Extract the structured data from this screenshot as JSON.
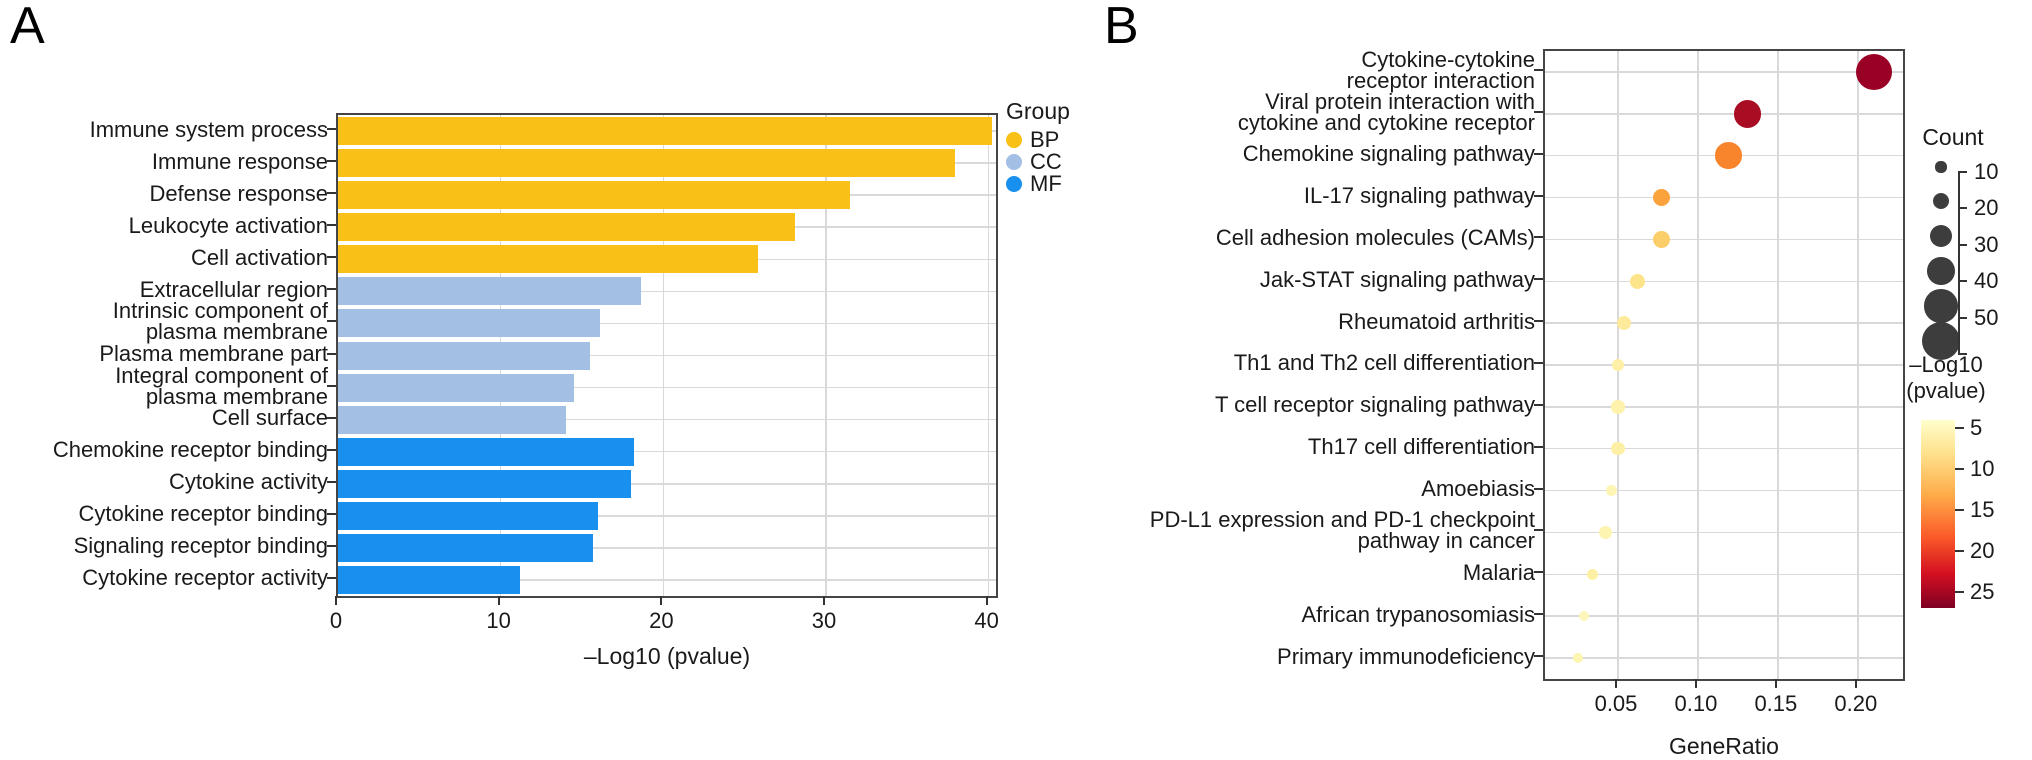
{
  "figure": {
    "panel_a_label": "A",
    "panel_b_label": "B"
  },
  "chart_data": [
    {
      "id": "go_enrichment_bar",
      "type": "bar",
      "orientation": "horizontal",
      "xlabel": "–Log10 (pvalue)",
      "xticks": [
        0,
        10,
        20,
        30,
        40
      ],
      "xlim": [
        0,
        40.5
      ],
      "grid": true,
      "legend": {
        "title": "Group",
        "position": "right",
        "items": [
          {
            "label": "BP",
            "color": "#F9C117"
          },
          {
            "label": "CC",
            "color": "#A3BFE4"
          },
          {
            "label": "MF",
            "color": "#1790F0"
          }
        ]
      },
      "categories": [
        "Immune system process",
        "Immune response",
        "Defense response",
        "Leukocyte activation",
        "Cell activation",
        "Extracellular region",
        "Intrinsic component of plasma membrane",
        "Plasma membrane part",
        "Integral component of plasma membrane",
        "Cell surface",
        "Chemokine receptor binding",
        "Cytokine activity",
        "Cytokine receptor binding",
        "Signaling receptor binding",
        "Cytokine receptor activity"
      ],
      "category_lines": [
        [
          "Immune system process"
        ],
        [
          "Immune response"
        ],
        [
          "Defense response"
        ],
        [
          "Leukocyte activation"
        ],
        [
          "Cell activation"
        ],
        [
          "Extracellular region"
        ],
        [
          "Intrinsic component of",
          "plasma membrane"
        ],
        [
          "Plasma membrane part"
        ],
        [
          "Integral component of",
          "plasma membrane"
        ],
        [
          "Cell surface"
        ],
        [
          "Chemokine receptor binding"
        ],
        [
          "Cytokine activity"
        ],
        [
          "Cytokine receptor binding"
        ],
        [
          "Signaling receptor binding"
        ],
        [
          "Cytokine receptor activity"
        ]
      ],
      "group_of": [
        "BP",
        "BP",
        "BP",
        "BP",
        "BP",
        "CC",
        "CC",
        "CC",
        "CC",
        "CC",
        "MF",
        "MF",
        "MF",
        "MF",
        "MF"
      ],
      "series": [
        {
          "name": "-Log10(pvalue)",
          "values": [
            40.2,
            37.9,
            31.5,
            28.1,
            25.8,
            18.6,
            16.1,
            15.5,
            14.5,
            14.0,
            18.2,
            18.0,
            16.0,
            15.7,
            11.2
          ]
        }
      ]
    },
    {
      "id": "kegg_dotplot",
      "type": "scatter",
      "xlabel": "GeneRatio",
      "xtick_labels": [
        "0.05",
        "0.10",
        "0.15",
        "0.20"
      ],
      "xtick_values": [
        0.05,
        0.1,
        0.15,
        0.2
      ],
      "xlim": [
        0.004,
        0.24
      ],
      "grid": true,
      "size_legend": {
        "title": "Count",
        "tick_labels": [
          "10",
          "20",
          "30",
          "40",
          "50"
        ],
        "bubble_counts": [
          10,
          20,
          30,
          40,
          50,
          60
        ]
      },
      "color_legend": {
        "title_lines": [
          "–Log10",
          "(pvalue)"
        ],
        "ticks": [
          "5",
          "10",
          "15",
          "20",
          "25"
        ],
        "scale_range": [
          5,
          25
        ],
        "gradient_top_to_bottom": [
          "#FFFFCC",
          "#FEE18B",
          "#FEAB49",
          "#FB5B29",
          "#D30F21",
          "#7E0023"
        ]
      },
      "points": [
        {
          "label": "Cytokine-cytokine receptor interaction",
          "label_lines": [
            "Cytokine-cytokine",
            "receptor interaction"
          ],
          "gene_ratio": 0.21,
          "count": 55,
          "neg_log10_pvalue": 25,
          "color": "#9A0026"
        },
        {
          "label": "Viral protein interaction with cytokine and cytokine receptor",
          "label_lines": [
            "Viral protein interaction with",
            "cytokine and cytokine receptor"
          ],
          "gene_ratio": 0.131,
          "count": 40,
          "neg_log10_pvalue": 23,
          "color": "#A80D23"
        },
        {
          "label": "Chemokine signaling pathway",
          "label_lines": [
            "Chemokine signaling pathway"
          ],
          "gene_ratio": 0.119,
          "count": 38,
          "neg_log10_pvalue": 14,
          "color": "#F8842C"
        },
        {
          "label": "IL-17 signaling pathway",
          "label_lines": [
            "IL-17 signaling pathway"
          ],
          "gene_ratio": 0.077,
          "count": 21,
          "neg_log10_pvalue": 12,
          "color": "#FAA23C"
        },
        {
          "label": "Cell adhesion molecules (CAMs)",
          "label_lines": [
            "Cell adhesion molecules (CAMs)"
          ],
          "gene_ratio": 0.077,
          "count": 21,
          "neg_log10_pvalue": 8.5,
          "color": "#FCCE69"
        },
        {
          "label": "Jak-STAT signaling pathway",
          "label_lines": [
            "Jak-STAT signaling pathway"
          ],
          "gene_ratio": 0.062,
          "count": 17,
          "neg_log10_pvalue": 7,
          "color": "#FDE48A"
        },
        {
          "label": "Rheumatoid arthritis",
          "label_lines": [
            "Rheumatoid arthritis"
          ],
          "gene_ratio": 0.054,
          "count": 15,
          "neg_log10_pvalue": 6,
          "color": "#FDEB9B"
        },
        {
          "label": "Th1 and Th2 cell differentiation",
          "label_lines": [
            "Th1 and Th2 cell differentiation"
          ],
          "gene_ratio": 0.05,
          "count": 13,
          "neg_log10_pvalue": 5,
          "color": "#FEF0A7"
        },
        {
          "label": "T cell receptor signaling pathway",
          "label_lines": [
            "T cell receptor signaling pathway"
          ],
          "gene_ratio": 0.05,
          "count": 14,
          "neg_log10_pvalue": 5,
          "color": "#FEF2AC"
        },
        {
          "label": "Th17 cell differentiation",
          "label_lines": [
            "Th17 cell differentiation"
          ],
          "gene_ratio": 0.05,
          "count": 14,
          "neg_log10_pvalue": 5,
          "color": "#FDF0A4"
        },
        {
          "label": "Amoebiasis",
          "label_lines": [
            "Amoebiasis"
          ],
          "gene_ratio": 0.046,
          "count": 10,
          "neg_log10_pvalue": 4.5,
          "color": "#FEF5B5"
        },
        {
          "label": "PD-L1 expression and PD-1 checkpoint pathway in cancer",
          "label_lines": [
            "PD-L1 expression and PD-1 checkpoint",
            "pathway in cancer"
          ],
          "gene_ratio": 0.042,
          "count": 13,
          "neg_log10_pvalue": 4.5,
          "color": "#FEF4B1"
        },
        {
          "label": "Malaria",
          "label_lines": [
            "Malaria"
          ],
          "gene_ratio": 0.034,
          "count": 11,
          "neg_log10_pvalue": 5,
          "color": "#FDEFA3"
        },
        {
          "label": "African trypanosomiasis",
          "label_lines": [
            "African trypanosomiasis"
          ],
          "gene_ratio": 0.029,
          "count": 8,
          "neg_log10_pvalue": 4,
          "color": "#FEF7BD"
        },
        {
          "label": "Primary immunodeficiency",
          "label_lines": [
            "Primary immunodeficiency"
          ],
          "gene_ratio": 0.025,
          "count": 8,
          "neg_log10_pvalue": 4.5,
          "color": "#FDF5B0"
        }
      ]
    }
  ]
}
